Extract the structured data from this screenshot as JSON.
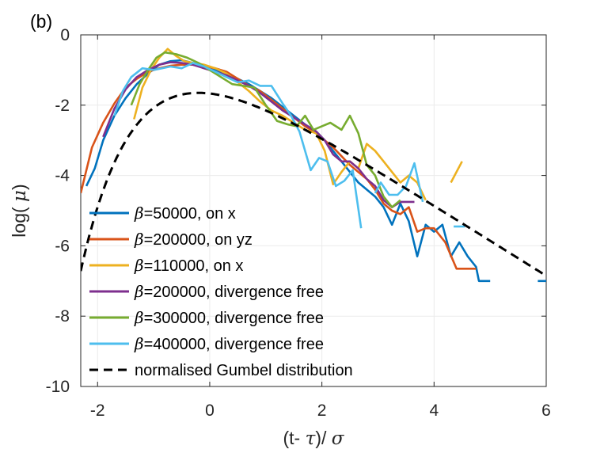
{
  "panel_label": "(b)",
  "chart_data": {
    "type": "line",
    "title": "",
    "xlabel_parts": [
      "(t- ",
      "τ",
      ")/ ",
      "σ"
    ],
    "ylabel_parts": [
      "log( ",
      "μ",
      ")"
    ],
    "xlim": [
      -2.3,
      6
    ],
    "ylim": [
      -10,
      0
    ],
    "xticks": [
      -2,
      0,
      2,
      4,
      6
    ],
    "yticks": [
      0,
      -2,
      -4,
      -6,
      -8,
      -10
    ],
    "grid": true,
    "legend_position": "lower-left",
    "series": [
      {
        "name": "β=50000, on x",
        "legend_parts": [
          "β",
          "=50000, on x"
        ],
        "color": "#0072BD",
        "dash": "",
        "segments": [
          [
            [
              -2.2,
              -4.3
            ],
            [
              -2.05,
              -3.8
            ],
            [
              -1.9,
              -3.0
            ],
            [
              -1.7,
              -2.3
            ],
            [
              -1.5,
              -1.8
            ],
            [
              -1.3,
              -1.4
            ],
            [
              -1.1,
              -1.1
            ],
            [
              -0.9,
              -0.85
            ],
            [
              -0.7,
              -0.75
            ],
            [
              -0.5,
              -0.72
            ],
            [
              -0.3,
              -0.8
            ],
            [
              -0.1,
              -0.9
            ],
            [
              0.1,
              -1.0
            ],
            [
              0.3,
              -1.1
            ],
            [
              0.5,
              -1.25
            ],
            [
              0.7,
              -1.4
            ],
            [
              0.9,
              -1.6
            ],
            [
              1.1,
              -1.8
            ],
            [
              1.3,
              -2.05
            ],
            [
              1.5,
              -2.3
            ],
            [
              1.7,
              -2.55
            ],
            [
              1.9,
              -2.75
            ],
            [
              2.05,
              -3.0
            ],
            [
              2.2,
              -3.3
            ],
            [
              2.35,
              -3.6
            ],
            [
              2.5,
              -3.9
            ],
            [
              2.65,
              -4.2
            ],
            [
              2.8,
              -4.4
            ],
            [
              2.95,
              -4.6
            ],
            [
              3.1,
              -4.9
            ],
            [
              3.25,
              -5.4
            ],
            [
              3.4,
              -4.8
            ],
            [
              3.55,
              -5.3
            ],
            [
              3.7,
              -6.3
            ],
            [
              3.85,
              -5.4
            ],
            [
              4.0,
              -5.6
            ],
            [
              4.15,
              -5.4
            ],
            [
              4.3,
              -6.3
            ],
            [
              4.45,
              -5.9
            ],
            [
              4.6,
              -6.3
            ],
            [
              4.75,
              -6.6
            ],
            [
              4.8,
              -7.0
            ],
            [
              5.0,
              -7.0
            ]
          ],
          [
            [
              5.85,
              -7.0
            ],
            [
              6.0,
              -7.0
            ]
          ]
        ]
      },
      {
        "name": "β=200000, on yz",
        "legend_parts": [
          "β",
          "=200000, on yz"
        ],
        "color": "#D95319",
        "dash": "",
        "segments": [
          [
            [
              -2.3,
              -4.5
            ],
            [
              -2.1,
              -3.2
            ],
            [
              -1.9,
              -2.5
            ],
            [
              -1.7,
              -1.95
            ],
            [
              -1.5,
              -1.5
            ],
            [
              -1.3,
              -1.25
            ],
            [
              -1.1,
              -1.05
            ],
            [
              -0.9,
              -0.95
            ],
            [
              -0.7,
              -0.88
            ],
            [
              -0.5,
              -0.85
            ],
            [
              -0.3,
              -0.85
            ],
            [
              -0.1,
              -0.9
            ],
            [
              0.1,
              -0.95
            ],
            [
              0.3,
              -1.05
            ],
            [
              0.5,
              -1.25
            ],
            [
              0.7,
              -1.45
            ],
            [
              0.9,
              -1.6
            ],
            [
              1.1,
              -1.85
            ],
            [
              1.3,
              -2.1
            ],
            [
              1.5,
              -2.35
            ],
            [
              1.7,
              -2.6
            ],
            [
              1.9,
              -2.8
            ],
            [
              2.05,
              -3.0
            ],
            [
              2.2,
              -3.2
            ],
            [
              2.35,
              -3.45
            ],
            [
              2.5,
              -3.7
            ],
            [
              2.65,
              -3.9
            ],
            [
              2.8,
              -4.1
            ],
            [
              2.95,
              -4.4
            ],
            [
              3.1,
              -4.8
            ],
            [
              3.25,
              -5.0
            ],
            [
              3.4,
              -5.1
            ],
            [
              3.55,
              -4.9
            ],
            [
              3.7,
              -5.6
            ],
            [
              3.85,
              -5.5
            ],
            [
              4.0,
              -5.5
            ],
            [
              4.2,
              -5.9
            ],
            [
              4.4,
              -6.65
            ],
            [
              4.6,
              -6.65
            ],
            [
              4.75,
              -6.65
            ]
          ]
        ]
      },
      {
        "name": "β=110000, on x",
        "legend_parts": [
          "β",
          "=110000, on x"
        ],
        "color": "#EDB120",
        "dash": "",
        "segments": [
          [
            [
              -1.35,
              -2.4
            ],
            [
              -1.2,
              -1.5
            ],
            [
              -1.05,
              -1.0
            ],
            [
              -0.9,
              -0.65
            ],
            [
              -0.75,
              -0.4
            ],
            [
              -0.6,
              -0.6
            ],
            [
              -0.45,
              -0.75
            ],
            [
              -0.3,
              -0.8
            ],
            [
              -0.1,
              -0.85
            ],
            [
              0.1,
              -0.95
            ],
            [
              0.3,
              -1.1
            ],
            [
              0.5,
              -1.35
            ],
            [
              0.7,
              -1.6
            ],
            [
              0.9,
              -1.9
            ],
            [
              1.1,
              -2.15
            ],
            [
              1.3,
              -2.3
            ],
            [
              1.5,
              -2.5
            ],
            [
              1.7,
              -2.7
            ],
            [
              1.9,
              -2.8
            ],
            [
              2.05,
              -3.3
            ],
            [
              2.2,
              -4.25
            ],
            [
              2.35,
              -3.9
            ],
            [
              2.5,
              -3.6
            ],
            [
              2.65,
              -3.8
            ],
            [
              2.8,
              -3.1
            ],
            [
              2.95,
              -3.3
            ],
            [
              3.1,
              -3.6
            ],
            [
              3.25,
              -3.9
            ],
            [
              3.4,
              -4.2
            ],
            [
              3.55,
              -4.0
            ],
            [
              3.7,
              -4.2
            ],
            [
              3.85,
              -4.7
            ]
          ],
          [
            [
              4.3,
              -4.2
            ],
            [
              4.5,
              -3.6
            ]
          ]
        ]
      },
      {
        "name": "β=200000, divergence free",
        "legend_parts": [
          "β",
          "=200000, divergence free"
        ],
        "color": "#7E2F8E",
        "dash": "",
        "segments": [
          [
            [
              -1.9,
              -2.9
            ],
            [
              -1.7,
              -2.1
            ],
            [
              -1.5,
              -1.55
            ],
            [
              -1.3,
              -1.2
            ],
            [
              -1.1,
              -1.0
            ],
            [
              -0.9,
              -0.85
            ],
            [
              -0.7,
              -0.78
            ],
            [
              -0.5,
              -0.8
            ],
            [
              -0.3,
              -0.85
            ],
            [
              -0.1,
              -0.95
            ],
            [
              0.1,
              -1.05
            ],
            [
              0.3,
              -1.15
            ],
            [
              0.5,
              -1.3
            ],
            [
              0.7,
              -1.45
            ],
            [
              0.9,
              -1.65
            ],
            [
              1.1,
              -1.9
            ],
            [
              1.3,
              -2.15
            ],
            [
              1.5,
              -2.35
            ],
            [
              1.7,
              -2.55
            ],
            [
              1.9,
              -2.75
            ],
            [
              2.05,
              -3.0
            ],
            [
              2.2,
              -3.4
            ],
            [
              2.35,
              -3.6
            ],
            [
              2.5,
              -3.6
            ],
            [
              2.65,
              -3.8
            ],
            [
              2.8,
              -4.1
            ],
            [
              2.95,
              -4.3
            ],
            [
              3.1,
              -4.7
            ],
            [
              3.25,
              -4.9
            ],
            [
              3.4,
              -4.75
            ],
            [
              3.55,
              -4.75
            ],
            [
              3.65,
              -4.75
            ]
          ]
        ]
      },
      {
        "name": "β=300000, divergence free",
        "legend_parts": [
          "β",
          "=300000, divergence free"
        ],
        "color": "#77AC30",
        "dash": "",
        "segments": [
          [
            [
              -1.4,
              -2.0
            ],
            [
              -1.25,
              -1.4
            ],
            [
              -1.1,
              -1.0
            ],
            [
              -0.95,
              -0.65
            ],
            [
              -0.8,
              -0.5
            ],
            [
              -0.6,
              -0.55
            ],
            [
              -0.4,
              -0.65
            ],
            [
              -0.2,
              -0.8
            ],
            [
              0.0,
              -1.0
            ],
            [
              0.2,
              -1.2
            ],
            [
              0.4,
              -1.4
            ],
            [
              0.6,
              -1.45
            ],
            [
              0.8,
              -1.5
            ],
            [
              1.0,
              -2.0
            ],
            [
              1.2,
              -2.45
            ],
            [
              1.4,
              -2.55
            ],
            [
              1.55,
              -2.6
            ],
            [
              1.7,
              -2.3
            ],
            [
              1.85,
              -2.7
            ],
            [
              2.0,
              -2.6
            ],
            [
              2.15,
              -2.5
            ],
            [
              2.35,
              -2.7
            ],
            [
              2.5,
              -2.3
            ],
            [
              2.65,
              -2.8
            ],
            [
              2.8,
              -3.7
            ],
            [
              2.95,
              -4.0
            ],
            [
              3.1,
              -4.6
            ],
            [
              3.25,
              -4.9
            ],
            [
              3.4,
              -4.7
            ]
          ]
        ]
      },
      {
        "name": "β=400000, divergence free",
        "legend_parts": [
          "β",
          "=400000, divergence free"
        ],
        "color": "#4DBEEE",
        "dash": "",
        "segments": [
          [
            [
              -1.7,
              -2.3
            ],
            [
              -1.55,
              -1.6
            ],
            [
              -1.4,
              -1.2
            ],
            [
              -1.2,
              -0.95
            ],
            [
              -1.0,
              -1.0
            ],
            [
              -0.85,
              -0.95
            ],
            [
              -0.7,
              -0.9
            ],
            [
              -0.5,
              -0.95
            ],
            [
              -0.3,
              -0.8
            ],
            [
              -0.1,
              -0.9
            ],
            [
              0.1,
              -1.05
            ],
            [
              0.3,
              -1.2
            ],
            [
              0.5,
              -1.35
            ],
            [
              0.7,
              -1.3
            ],
            [
              0.9,
              -1.45
            ],
            [
              1.1,
              -1.45
            ],
            [
              1.3,
              -1.95
            ],
            [
              1.45,
              -2.3
            ],
            [
              1.6,
              -2.75
            ],
            [
              1.7,
              -3.3
            ],
            [
              1.8,
              -3.85
            ],
            [
              1.95,
              -3.5
            ],
            [
              2.1,
              -3.6
            ],
            [
              2.25,
              -4.3
            ],
            [
              2.4,
              -4.15
            ],
            [
              2.55,
              -3.85
            ],
            [
              2.7,
              -5.5
            ]
          ],
          [
            [
              2.95,
              -4.5
            ],
            [
              3.05,
              -4.2
            ],
            [
              3.2,
              -4.55
            ],
            [
              3.35,
              -4.55
            ],
            [
              3.5,
              -4.3
            ],
            [
              3.65,
              -3.65
            ],
            [
              3.8,
              -4.75
            ]
          ],
          [
            [
              4.35,
              -5.45
            ],
            [
              4.55,
              -5.45
            ]
          ]
        ]
      }
    ],
    "reference": {
      "name": "normalised Gumbel distribution",
      "color": "#000000",
      "dash": "11,7",
      "mu_offset": 0.2,
      "shift": -0.65,
      "x_start": -2.3,
      "x_end": 6.0
    }
  }
}
